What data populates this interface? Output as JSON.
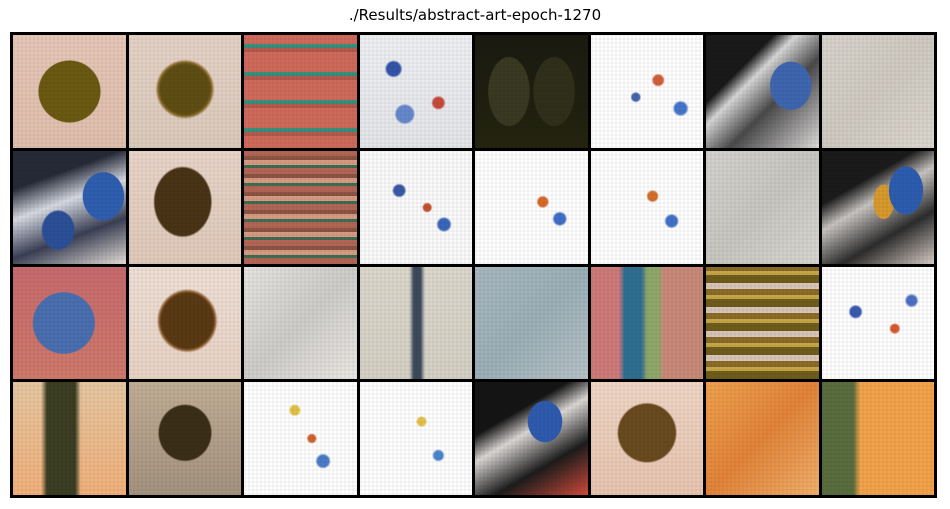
{
  "figure": {
    "title": "./Results/abstract-art-epoch-1270",
    "grid": {
      "rows": 4,
      "cols": 8
    }
  },
  "tiles": [
    {
      "row": 1,
      "col": 1,
      "icon": "generated-art-tile"
    },
    {
      "row": 1,
      "col": 2,
      "icon": "generated-art-tile"
    },
    {
      "row": 1,
      "col": 3,
      "icon": "generated-art-tile"
    },
    {
      "row": 1,
      "col": 4,
      "icon": "generated-art-tile"
    },
    {
      "row": 1,
      "col": 5,
      "icon": "generated-art-tile"
    },
    {
      "row": 1,
      "col": 6,
      "icon": "generated-art-tile"
    },
    {
      "row": 1,
      "col": 7,
      "icon": "generated-art-tile"
    },
    {
      "row": 1,
      "col": 8,
      "icon": "generated-art-tile"
    },
    {
      "row": 2,
      "col": 1,
      "icon": "generated-art-tile"
    },
    {
      "row": 2,
      "col": 2,
      "icon": "generated-art-tile"
    },
    {
      "row": 2,
      "col": 3,
      "icon": "generated-art-tile"
    },
    {
      "row": 2,
      "col": 4,
      "icon": "generated-art-tile"
    },
    {
      "row": 2,
      "col": 5,
      "icon": "generated-art-tile"
    },
    {
      "row": 2,
      "col": 6,
      "icon": "generated-art-tile"
    },
    {
      "row": 2,
      "col": 7,
      "icon": "generated-art-tile"
    },
    {
      "row": 2,
      "col": 8,
      "icon": "generated-art-tile"
    },
    {
      "row": 3,
      "col": 1,
      "icon": "generated-art-tile"
    },
    {
      "row": 3,
      "col": 2,
      "icon": "generated-art-tile"
    },
    {
      "row": 3,
      "col": 3,
      "icon": "generated-art-tile"
    },
    {
      "row": 3,
      "col": 4,
      "icon": "generated-art-tile"
    },
    {
      "row": 3,
      "col": 5,
      "icon": "generated-art-tile"
    },
    {
      "row": 3,
      "col": 6,
      "icon": "generated-art-tile"
    },
    {
      "row": 3,
      "col": 7,
      "icon": "generated-art-tile"
    },
    {
      "row": 3,
      "col": 8,
      "icon": "generated-art-tile"
    },
    {
      "row": 4,
      "col": 1,
      "icon": "generated-art-tile"
    },
    {
      "row": 4,
      "col": 2,
      "icon": "generated-art-tile"
    },
    {
      "row": 4,
      "col": 3,
      "icon": "generated-art-tile"
    },
    {
      "row": 4,
      "col": 4,
      "icon": "generated-art-tile"
    },
    {
      "row": 4,
      "col": 5,
      "icon": "generated-art-tile"
    },
    {
      "row": 4,
      "col": 6,
      "icon": "generated-art-tile"
    },
    {
      "row": 4,
      "col": 7,
      "icon": "generated-art-tile"
    },
    {
      "row": 4,
      "col": 8,
      "icon": "generated-art-tile"
    }
  ],
  "colors": {
    "background": "#ffffff",
    "grid_border": "#000000",
    "title_text": "#000000"
  }
}
